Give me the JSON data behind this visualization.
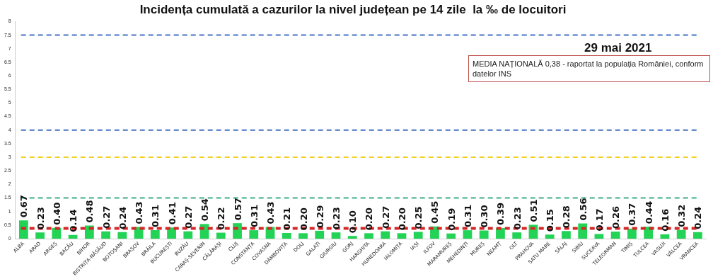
{
  "chart_data": {
    "type": "bar",
    "title": "Incidența cumulată a cazurilor la nivel județean pe 14 zile  la ‰ de locuitori",
    "categories": [
      "ALBA",
      "ARAD",
      "ARGEȘ",
      "BACĂU",
      "BIHOR",
      "BISTRIȚA-NĂSĂUD",
      "BOTOȘANI",
      "BRAȘOV",
      "BRĂILA",
      "BUCUREȘTI",
      "BUZĂU",
      "CARAȘ-SEVERIN",
      "CĂLĂRAȘI",
      "CLUJ",
      "CONSTANȚA",
      "COVASNA",
      "DÂMBOVIȚA",
      "DOLJ",
      "GALAȚI",
      "GIURGIU",
      "GORJ",
      "HARGHITA",
      "HUNEDOARA",
      "IALOMIȚA",
      "IAȘI",
      "ILFOV",
      "MARAMUREȘ",
      "MEHEDINȚI",
      "MUREȘ",
      "NEAMȚ",
      "OLT",
      "PRAHOVA",
      "SATU MARE",
      "SĂLAJ",
      "SIBIU",
      "SUCEAVA",
      "TELEORMAN",
      "TIMIȘ",
      "TULCEA",
      "VASLUI",
      "VÂLCEA",
      "VRANCEA"
    ],
    "values": [
      0.67,
      0.23,
      0.4,
      0.14,
      0.48,
      0.27,
      0.24,
      0.43,
      0.31,
      0.41,
      0.27,
      0.54,
      0.22,
      0.57,
      0.31,
      0.43,
      0.21,
      0.2,
      0.29,
      0.23,
      0.1,
      0.2,
      0.27,
      0.2,
      0.25,
      0.45,
      0.19,
      0.31,
      0.3,
      0.39,
      0.23,
      0.51,
      0.15,
      0.28,
      0.56,
      0.17,
      0.26,
      0.37,
      0.44,
      0.16,
      0.32,
      0.24
    ],
    "value_labels": [
      "0.67",
      "0.23",
      "0.40",
      "0.14",
      "0.48",
      "0.27",
      "0.24",
      "0.43",
      "0.31",
      "0.41",
      "0.27",
      "0.54",
      "0.22",
      "0.57",
      "0.31",
      "0.43",
      "0.21",
      "0.20",
      "0.29",
      "0.23",
      "0.10",
      "0.20",
      "0.27",
      "0.20",
      "0.25",
      "0.45",
      "0.19",
      "0.31",
      "0.30",
      "0.39",
      "0.23",
      "0.51",
      "0.15",
      "0.28",
      "0.56",
      "0.17",
      "0.26",
      "0.37",
      "0.44",
      "0.16",
      "0.32",
      "0.24"
    ],
    "color": "#22d356",
    "ylim": [
      0,
      8
    ],
    "yticks": [
      0,
      0.5,
      1,
      1.5,
      2,
      2.5,
      3,
      3.5,
      4,
      4.5,
      5,
      5.5,
      6,
      6.5,
      7,
      7.5,
      8
    ],
    "grid": false,
    "legend": false,
    "ref_lines": [
      {
        "axis": "y",
        "value": 7.5,
        "color": "#4472c4",
        "line_style": "dashed"
      },
      {
        "axis": "y",
        "value": 4,
        "color": "#4472c4",
        "line_style": "dashed"
      },
      {
        "axis": "y",
        "value": 3,
        "color": "#f2d022",
        "line_style": "dashed"
      },
      {
        "axis": "y",
        "value": 1.5,
        "color": "#3cae88",
        "line_style": "dashed"
      },
      {
        "axis": "y",
        "value": 0.38,
        "color": "#d62728",
        "line_style": "dashed"
      }
    ],
    "annotations": [
      "29 mai 2021",
      "MEDIA NAȚIONALĂ 0,38 - raportat la populația României, conform datelor INS"
    ]
  }
}
